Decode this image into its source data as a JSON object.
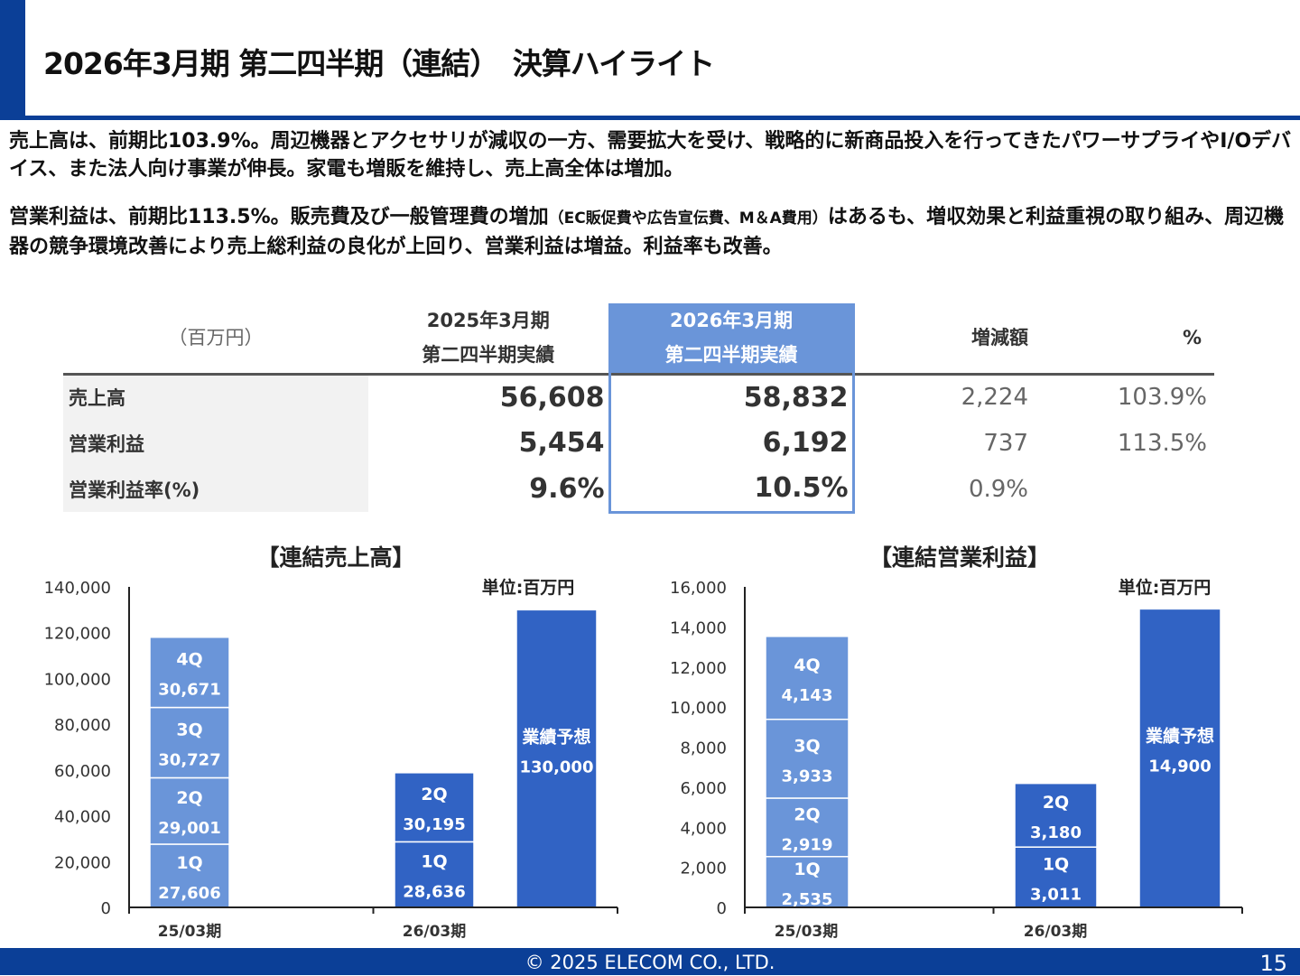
{
  "header": {
    "title": "2026年3月期 第二四半期（連結）　決算ハイライト"
  },
  "paragraphs": [
    {
      "text": "売上高は、前期比103.9%。周辺機器とアクセサリが減収の一方、需要拡大を受け、戦略的に新商品投入を行ってきたパワーサプライやI/Oデバイス、また法人向け事業が伸長。家電も増販を維持し、売上高全体は増加。"
    },
    {
      "text_a": "営業利益は、前期比113.5%。販売費及び一般管理費の増加",
      "text_small": "（EC販促費や広告宣伝費、M＆A費用）",
      "text_b": "はあるも、増収効果と利益重視の取り組み、周辺機器の競争環境改善により売上総利益の良化が上回り、営業利益は増益。利益率も改善。"
    }
  ],
  "table": {
    "unit": "（百万円）",
    "columns": [
      {
        "l1": "2025年3月期",
        "l2": "第二四半期実績"
      },
      {
        "l1": "2026年3月期",
        "l2": "第二四半期実績"
      },
      {
        "l1": "増減額"
      },
      {
        "l1": "%"
      }
    ],
    "rows": [
      {
        "label": "売上高",
        "prev": "56,608",
        "cur": "58,832",
        "diff": "2,224",
        "pct": "103.9%"
      },
      {
        "label": "営業利益",
        "prev": "5,454",
        "cur": "6,192",
        "diff": "737",
        "pct": "113.5%"
      },
      {
        "label": "営業利益率(%)",
        "prev": "9.6%",
        "cur": "10.5%",
        "diff": "0.9%",
        "pct": ""
      }
    ]
  },
  "colors": {
    "brand": "#0b3f97",
    "prev_bar": "#6a95d9",
    "cur_bar": "#3163c4"
  },
  "chart_data": [
    {
      "type": "bar",
      "stacked": true,
      "title": "【連結売上高】",
      "unit_label": "単位:百万円",
      "ylim": [
        0,
        140000
      ],
      "yticks": [
        "0",
        "20,000",
        "40,000",
        "60,000",
        "80,000",
        "100,000",
        "120,000",
        "140,000"
      ],
      "categories": [
        "25/03期",
        "26/03期"
      ],
      "bars": [
        {
          "category": "25/03期",
          "segments": [
            {
              "label": "1Q",
              "value": 27606,
              "text": "27,606"
            },
            {
              "label": "2Q",
              "value": 29001,
              "text": "29,001"
            },
            {
              "label": "3Q",
              "value": 30727,
              "text": "30,727"
            },
            {
              "label": "4Q",
              "value": 30671,
              "text": "30,671"
            }
          ]
        },
        {
          "category": "26/03期",
          "segments": [
            {
              "label": "1Q",
              "value": 28636,
              "text": "28,636"
            },
            {
              "label": "2Q",
              "value": 30195,
              "text": "30,195"
            }
          ]
        },
        {
          "category": "26/03期",
          "forecast": true,
          "segments": [
            {
              "label": "業績予想",
              "value": 130000,
              "text": "130,000"
            }
          ]
        }
      ]
    },
    {
      "type": "bar",
      "stacked": true,
      "title": "【連結営業利益】",
      "unit_label": "単位:百万円",
      "ylim": [
        0,
        16000
      ],
      "yticks": [
        "0",
        "2,000",
        "4,000",
        "6,000",
        "8,000",
        "10,000",
        "12,000",
        "14,000",
        "16,000"
      ],
      "categories": [
        "25/03期",
        "26/03期"
      ],
      "bars": [
        {
          "category": "25/03期",
          "segments": [
            {
              "label": "1Q",
              "value": 2535,
              "text": "2,535"
            },
            {
              "label": "2Q",
              "value": 2919,
              "text": "2,919"
            },
            {
              "label": "3Q",
              "value": 3933,
              "text": "3,933"
            },
            {
              "label": "4Q",
              "value": 4143,
              "text": "4,143"
            }
          ]
        },
        {
          "category": "26/03期",
          "segments": [
            {
              "label": "1Q",
              "value": 3011,
              "text": "3,011"
            },
            {
              "label": "2Q",
              "value": 3180,
              "text": "3,180"
            }
          ]
        },
        {
          "category": "26/03期",
          "forecast": true,
          "segments": [
            {
              "label": "業績予想",
              "value": 14900,
              "text": "14,900"
            }
          ]
        }
      ]
    }
  ],
  "footer": {
    "copyright": "© 2025 ELECOM CO., LTD.",
    "page": "15"
  }
}
